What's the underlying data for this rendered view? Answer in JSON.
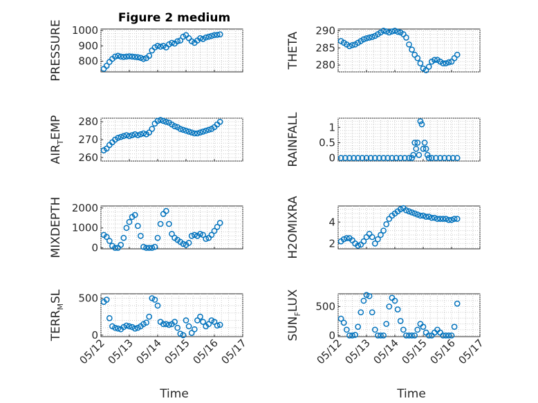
{
  "figure": {
    "title": "Figure 2 medium",
    "marker_color": "#0072BD",
    "grid": true,
    "x_tick_labels": [
      "05/12",
      "05/13",
      "05/14",
      "05/15",
      "05/16",
      "05/17"
    ],
    "x_axis_label": "Time"
  },
  "chart_data": [
    {
      "type": "scatter",
      "title": "Figure 2 medium",
      "ylabel": "PRESSURE",
      "ylim": [
        730,
        1010
      ],
      "yticks": [
        800,
        900,
        1000
      ],
      "xlim": [
        0,
        5
      ],
      "x": [
        0.1,
        0.2,
        0.3,
        0.4,
        0.5,
        0.6,
        0.7,
        0.8,
        0.9,
        1.0,
        1.1,
        1.2,
        1.3,
        1.4,
        1.5,
        1.6,
        1.7,
        1.8,
        1.9,
        2.0,
        2.1,
        2.2,
        2.3,
        2.4,
        2.5,
        2.6,
        2.7,
        2.8,
        2.9,
        3.0,
        3.1,
        3.2,
        3.3,
        3.4,
        3.5,
        3.6,
        3.7,
        3.8,
        3.9,
        4.0,
        4.1,
        4.2
      ],
      "y": [
        750,
        770,
        795,
        815,
        830,
        835,
        830,
        828,
        830,
        832,
        830,
        828,
        826,
        822,
        815,
        820,
        835,
        870,
        890,
        900,
        895,
        900,
        890,
        910,
        920,
        915,
        930,
        935,
        960,
        970,
        950,
        930,
        920,
        935,
        950,
        945,
        955,
        960,
        965,
        970,
        972,
        975
      ]
    },
    {
      "type": "scatter",
      "ylabel": "THETA",
      "ylim": [
        278,
        290.5
      ],
      "yticks": [
        280,
        285,
        290
      ],
      "xlim": [
        0,
        5
      ],
      "x": [
        0.1,
        0.2,
        0.3,
        0.4,
        0.5,
        0.6,
        0.7,
        0.8,
        0.9,
        1.0,
        1.1,
        1.2,
        1.3,
        1.4,
        1.5,
        1.6,
        1.7,
        1.8,
        1.9,
        2.0,
        2.1,
        2.2,
        2.3,
        2.4,
        2.5,
        2.6,
        2.7,
        2.8,
        2.9,
        3.0,
        3.1,
        3.2,
        3.3,
        3.4,
        3.5,
        3.6,
        3.7,
        3.8,
        3.9,
        4.0,
        4.1,
        4.2
      ],
      "y": [
        287,
        286.5,
        286,
        285.5,
        285.8,
        286,
        286.5,
        287,
        287.5,
        287.8,
        288,
        288.2,
        288.5,
        289,
        289.5,
        290,
        289.8,
        289.5,
        289.8,
        290,
        289.7,
        289.5,
        289,
        288,
        286,
        284.5,
        283,
        282,
        280.5,
        279,
        278.5,
        279.5,
        281,
        281.5,
        281.5,
        281,
        280.5,
        280.5,
        280.8,
        281,
        282,
        283
      ]
    },
    {
      "type": "scatter",
      "ylabel": "AIR_TEMP",
      "ylim": [
        258,
        282
      ],
      "yticks": [
        260,
        270,
        280
      ],
      "xlim": [
        0,
        5
      ],
      "x": [
        0.1,
        0.2,
        0.3,
        0.4,
        0.5,
        0.6,
        0.7,
        0.8,
        0.9,
        1.0,
        1.1,
        1.2,
        1.3,
        1.4,
        1.5,
        1.6,
        1.7,
        1.8,
        1.9,
        2.0,
        2.1,
        2.2,
        2.3,
        2.4,
        2.5,
        2.6,
        2.7,
        2.8,
        2.9,
        3.0,
        3.1,
        3.2,
        3.3,
        3.4,
        3.5,
        3.6,
        3.7,
        3.8,
        3.9,
        4.0,
        4.1,
        4.2
      ],
      "y": [
        264,
        265,
        267,
        268.5,
        270,
        271,
        271.5,
        272,
        272.5,
        272,
        272.5,
        273,
        272.5,
        273,
        273.5,
        273,
        274,
        276,
        279,
        280.5,
        281,
        280.5,
        280,
        279.5,
        278.5,
        277.5,
        277,
        276,
        275.5,
        275,
        274.5,
        274,
        273.5,
        273.5,
        274,
        274.5,
        275,
        275.5,
        276,
        277,
        278.5,
        280
      ]
    },
    {
      "type": "scatter",
      "ylabel": "RAINFALL",
      "ylim": [
        -0.1,
        1.3
      ],
      "yticks": [
        0,
        0.5,
        1
      ],
      "xlim": [
        0,
        5
      ],
      "x": [
        0.1,
        0.25,
        0.4,
        0.55,
        0.7,
        0.85,
        1.0,
        1.15,
        1.3,
        1.45,
        1.6,
        1.75,
        1.9,
        2.05,
        2.2,
        2.35,
        2.5,
        2.6,
        2.65,
        2.7,
        2.75,
        2.8,
        2.85,
        2.9,
        2.95,
        3.0,
        3.05,
        3.1,
        3.15,
        3.2,
        3.3,
        3.45,
        3.6,
        3.75,
        3.9,
        4.05,
        4.2
      ],
      "y": [
        0,
        0,
        0,
        0,
        0,
        0,
        0,
        0,
        0,
        0,
        0,
        0,
        0,
        0,
        0,
        0,
        0,
        0,
        0.1,
        0.5,
        0.3,
        0.5,
        0.1,
        1.2,
        1.1,
        0.3,
        0.5,
        0.3,
        0.1,
        0,
        0,
        0,
        0,
        0,
        0,
        0,
        0
      ]
    },
    {
      "type": "scatter",
      "ylabel": "MIXDEPTH",
      "ylim": [
        -50,
        2100
      ],
      "yticks": [
        0,
        1000,
        2000
      ],
      "xlim": [
        0,
        5
      ],
      "x": [
        0.1,
        0.2,
        0.3,
        0.4,
        0.5,
        0.6,
        0.7,
        0.8,
        0.9,
        1.0,
        1.1,
        1.2,
        1.3,
        1.4,
        1.5,
        1.6,
        1.7,
        1.8,
        1.9,
        2.0,
        2.1,
        2.2,
        2.3,
        2.4,
        2.5,
        2.6,
        2.7,
        2.8,
        2.9,
        3.0,
        3.1,
        3.2,
        3.3,
        3.4,
        3.5,
        3.6,
        3.7,
        3.8,
        3.9,
        4.0,
        4.1,
        4.2
      ],
      "y": [
        650,
        550,
        350,
        100,
        0,
        0,
        150,
        500,
        1000,
        1300,
        1550,
        1650,
        1100,
        600,
        50,
        0,
        0,
        0,
        50,
        500,
        1200,
        1700,
        1850,
        1200,
        700,
        500,
        400,
        300,
        200,
        150,
        250,
        600,
        650,
        600,
        700,
        650,
        450,
        500,
        650,
        850,
        1050,
        1250
      ]
    },
    {
      "type": "scatter",
      "ylabel": "H2OMIXRA",
      "ylim": [
        1.5,
        5.5
      ],
      "yticks": [
        2,
        4
      ],
      "xlim": [
        0,
        5
      ],
      "x": [
        0.1,
        0.2,
        0.3,
        0.4,
        0.5,
        0.6,
        0.7,
        0.8,
        0.9,
        1.0,
        1.1,
        1.2,
        1.3,
        1.4,
        1.5,
        1.6,
        1.7,
        1.8,
        1.9,
        2.0,
        2.1,
        2.2,
        2.3,
        2.4,
        2.5,
        2.6,
        2.7,
        2.8,
        2.9,
        3.0,
        3.1,
        3.2,
        3.3,
        3.4,
        3.5,
        3.6,
        3.7,
        3.8,
        3.9,
        4.0,
        4.1,
        4.2
      ],
      "y": [
        2.2,
        2.4,
        2.5,
        2.5,
        2.3,
        2.0,
        1.8,
        1.9,
        2.2,
        2.6,
        2.9,
        2.6,
        2.0,
        2.4,
        2.8,
        3.2,
        3.8,
        4.3,
        4.6,
        4.8,
        5.0,
        5.2,
        5.3,
        5.1,
        5.0,
        4.9,
        4.8,
        4.7,
        4.6,
        4.6,
        4.5,
        4.5,
        4.4,
        4.4,
        4.3,
        4.3,
        4.3,
        4.3,
        4.2,
        4.2,
        4.3,
        4.3
      ]
    },
    {
      "type": "scatter",
      "ylabel": "TERR_MSL",
      "ylim": [
        -20,
        560
      ],
      "yticks": [
        0,
        500
      ],
      "xlim": [
        0,
        5
      ],
      "x": [
        0.1,
        0.2,
        0.3,
        0.4,
        0.5,
        0.6,
        0.7,
        0.8,
        0.9,
        1.0,
        1.1,
        1.2,
        1.3,
        1.4,
        1.5,
        1.6,
        1.7,
        1.8,
        1.9,
        2.0,
        2.1,
        2.2,
        2.3,
        2.4,
        2.5,
        2.6,
        2.7,
        2.8,
        2.9,
        3.0,
        3.1,
        3.2,
        3.3,
        3.4,
        3.5,
        3.6,
        3.7,
        3.8,
        3.9,
        4.0,
        4.1,
        4.2
      ],
      "y": [
        450,
        480,
        230,
        120,
        100,
        90,
        80,
        110,
        130,
        120,
        110,
        90,
        100,
        120,
        150,
        170,
        250,
        500,
        480,
        400,
        180,
        150,
        150,
        140,
        150,
        180,
        100,
        20,
        0,
        200,
        120,
        30,
        80,
        200,
        250,
        180,
        120,
        150,
        200,
        180,
        130,
        140
      ]
    },
    {
      "type": "scatter",
      "ylabel": "SUN_FLUX",
      "ylim": [
        -20,
        720
      ],
      "yticks": [
        0,
        500
      ],
      "xlim": [
        0,
        5
      ],
      "x": [
        0.1,
        0.2,
        0.3,
        0.4,
        0.5,
        0.6,
        0.7,
        0.8,
        0.9,
        1.0,
        1.1,
        1.2,
        1.3,
        1.4,
        1.5,
        1.6,
        1.7,
        1.8,
        1.9,
        2.0,
        2.1,
        2.2,
        2.3,
        2.4,
        2.5,
        2.6,
        2.7,
        2.8,
        2.9,
        3.0,
        3.1,
        3.2,
        3.3,
        3.4,
        3.5,
        3.6,
        3.7,
        3.8,
        3.9,
        4.0,
        4.1,
        4.2
      ],
      "y": [
        290,
        220,
        100,
        0,
        0,
        10,
        150,
        400,
        600,
        700,
        680,
        400,
        100,
        0,
        0,
        0,
        200,
        500,
        650,
        600,
        450,
        250,
        100,
        0,
        0,
        0,
        0,
        100,
        200,
        150,
        50,
        0,
        0,
        50,
        100,
        50,
        0,
        0,
        0,
        0,
        150,
        550
      ]
    }
  ]
}
